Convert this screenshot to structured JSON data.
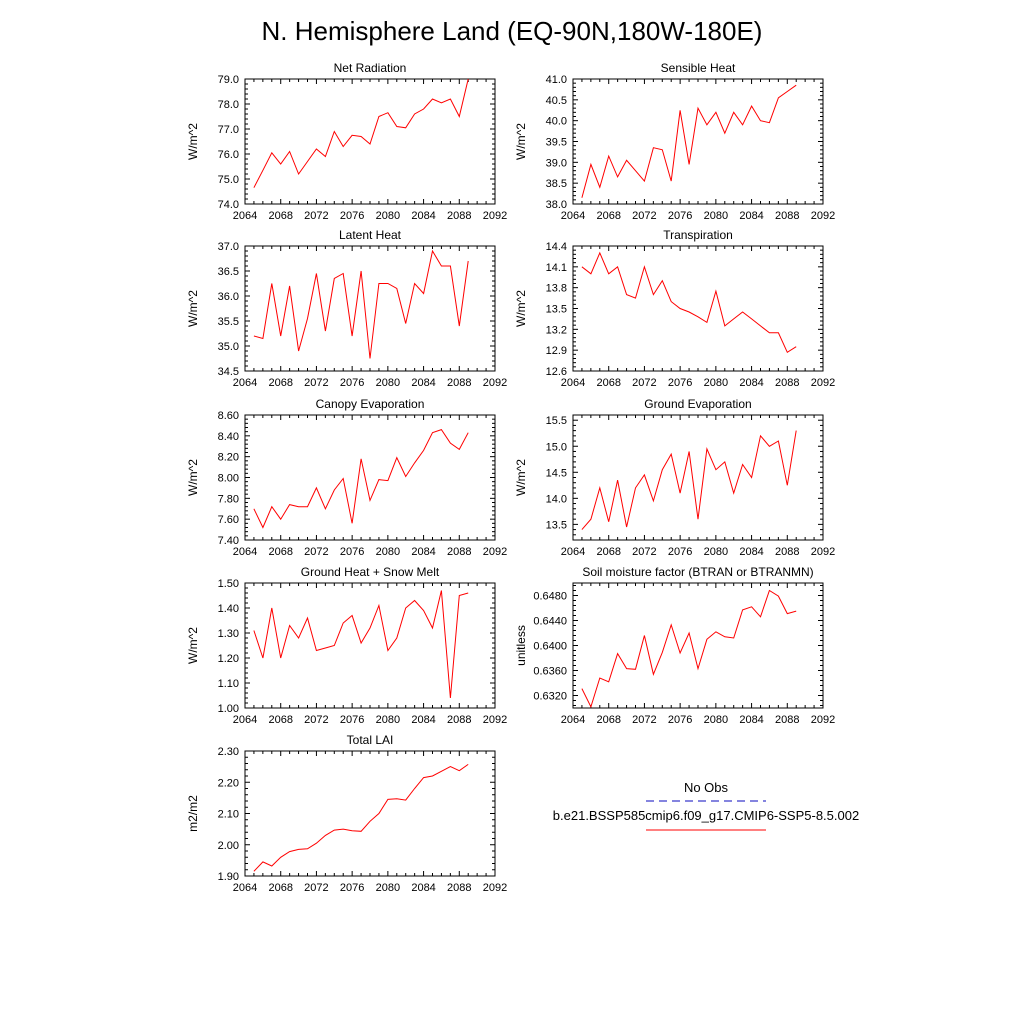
{
  "page": {
    "title": "N. Hemisphere Land (EQ-90N,180W-180E)"
  },
  "legend": {
    "obs_label": "No Obs",
    "obs_color": "#3b3bcc",
    "model_label": "b.e21.BSSP585cmip6.f09_g17.CMIP6-SSP5-8.5.002",
    "model_color": "#ff0000"
  },
  "chart_data": [
    {
      "type": "line",
      "title": "Net Radiation",
      "ylabel": "W/m^2",
      "xlim": [
        2064,
        2092
      ],
      "ylim": [
        74.0,
        79.0
      ],
      "xticks": [
        "2064",
        "2068",
        "2072",
        "2076",
        "2080",
        "2084",
        "2088",
        "2092"
      ],
      "yticks": [
        "74.0",
        "75.0",
        "76.0",
        "77.0",
        "78.0",
        "79.0"
      ],
      "x": [
        2065,
        2066,
        2067,
        2068,
        2069,
        2070,
        2071,
        2072,
        2073,
        2074,
        2075,
        2076,
        2077,
        2078,
        2079,
        2080,
        2081,
        2082,
        2083,
        2084,
        2085,
        2086,
        2087,
        2088,
        2089
      ],
      "series": [
        {
          "color": "#ff0000",
          "values": [
            74.65,
            75.35,
            76.05,
            75.6,
            76.1,
            75.2,
            75.7,
            76.2,
            75.9,
            76.9,
            76.3,
            76.75,
            76.7,
            76.4,
            77.5,
            77.65,
            77.1,
            77.05,
            77.6,
            77.8,
            78.2,
            78.05,
            78.2,
            77.5,
            79.0
          ]
        }
      ]
    },
    {
      "type": "line",
      "title": "Sensible Heat",
      "ylabel": "W/m^2",
      "xlim": [
        2064,
        2092
      ],
      "ylim": [
        38.0,
        41.0
      ],
      "xticks": [
        "2064",
        "2068",
        "2072",
        "2076",
        "2080",
        "2084",
        "2088",
        "2092"
      ],
      "yticks": [
        "38.0",
        "38.5",
        "39.0",
        "39.5",
        "40.0",
        "40.5",
        "41.0"
      ],
      "x": [
        2065,
        2066,
        2067,
        2068,
        2069,
        2070,
        2071,
        2072,
        2073,
        2074,
        2075,
        2076,
        2077,
        2078,
        2079,
        2080,
        2081,
        2082,
        2083,
        2084,
        2085,
        2086,
        2087,
        2088,
        2089
      ],
      "series": [
        {
          "color": "#ff0000",
          "values": [
            38.15,
            38.95,
            38.4,
            39.15,
            38.65,
            39.05,
            38.8,
            38.55,
            39.35,
            39.3,
            38.55,
            40.25,
            38.95,
            40.3,
            39.9,
            40.2,
            39.7,
            40.2,
            39.9,
            40.35,
            40.0,
            39.95,
            40.55,
            40.7,
            40.85
          ]
        }
      ]
    },
    {
      "type": "line",
      "title": "Latent Heat",
      "ylabel": "W/m^2",
      "xlim": [
        2064,
        2092
      ],
      "ylim": [
        34.5,
        37.0
      ],
      "xticks": [
        "2064",
        "2068",
        "2072",
        "2076",
        "2080",
        "2084",
        "2088",
        "2092"
      ],
      "yticks": [
        "34.5",
        "35.0",
        "35.5",
        "36.0",
        "36.5",
        "37.0"
      ],
      "x": [
        2065,
        2066,
        2067,
        2068,
        2069,
        2070,
        2071,
        2072,
        2073,
        2074,
        2075,
        2076,
        2077,
        2078,
        2079,
        2080,
        2081,
        2082,
        2083,
        2084,
        2085,
        2086,
        2087,
        2088,
        2089
      ],
      "series": [
        {
          "color": "#ff0000",
          "values": [
            35.2,
            35.15,
            36.25,
            35.2,
            36.2,
            34.9,
            35.55,
            36.45,
            35.3,
            36.35,
            36.45,
            35.2,
            36.5,
            34.75,
            36.25,
            36.25,
            36.15,
            35.45,
            36.25,
            36.05,
            36.9,
            36.6,
            36.6,
            35.4,
            36.7
          ]
        }
      ]
    },
    {
      "type": "line",
      "title": "Transpiration",
      "ylabel": "W/m^2",
      "xlim": [
        2064,
        2092
      ],
      "ylim": [
        12.6,
        14.4
      ],
      "xticks": [
        "2064",
        "2068",
        "2072",
        "2076",
        "2080",
        "2084",
        "2088",
        "2092"
      ],
      "yticks": [
        "12.6",
        "12.9",
        "13.2",
        "13.5",
        "13.8",
        "14.1",
        "14.4"
      ],
      "x": [
        2065,
        2066,
        2067,
        2068,
        2069,
        2070,
        2071,
        2072,
        2073,
        2074,
        2075,
        2076,
        2077,
        2078,
        2079,
        2080,
        2081,
        2082,
        2083,
        2084,
        2085,
        2086,
        2087,
        2088,
        2089
      ],
      "series": [
        {
          "color": "#ff0000",
          "values": [
            14.1,
            14.0,
            14.3,
            14.0,
            14.1,
            13.7,
            13.65,
            14.1,
            13.7,
            13.9,
            13.6,
            13.5,
            13.45,
            13.38,
            13.3,
            13.75,
            13.25,
            13.35,
            13.45,
            13.35,
            13.25,
            13.15,
            13.15,
            12.87,
            12.95
          ]
        }
      ]
    },
    {
      "type": "line",
      "title": "Canopy Evaporation",
      "ylabel": "W/m^2",
      "xlim": [
        2064,
        2092
      ],
      "ylim": [
        7.4,
        8.6
      ],
      "xticks": [
        "2064",
        "2068",
        "2072",
        "2076",
        "2080",
        "2084",
        "2088",
        "2092"
      ],
      "yticks": [
        "7.40",
        "7.60",
        "7.80",
        "8.00",
        "8.20",
        "8.40",
        "8.60"
      ],
      "x": [
        2065,
        2066,
        2067,
        2068,
        2069,
        2070,
        2071,
        2072,
        2073,
        2074,
        2075,
        2076,
        2077,
        2078,
        2079,
        2080,
        2081,
        2082,
        2083,
        2084,
        2085,
        2086,
        2087,
        2088,
        2089
      ],
      "series": [
        {
          "color": "#ff0000",
          "values": [
            7.7,
            7.52,
            7.72,
            7.6,
            7.74,
            7.72,
            7.72,
            7.9,
            7.7,
            7.88,
            7.99,
            7.56,
            8.18,
            7.78,
            7.98,
            7.97,
            8.19,
            8.01,
            8.14,
            8.26,
            8.43,
            8.46,
            8.33,
            8.27,
            8.43
          ]
        }
      ]
    },
    {
      "type": "line",
      "title": "Ground Evaporation",
      "ylabel": "W/m^2",
      "xlim": [
        2064,
        2092
      ],
      "ylim": [
        13.2,
        15.6
      ],
      "xticks": [
        "2064",
        "2068",
        "2072",
        "2076",
        "2080",
        "2084",
        "2088",
        "2092"
      ],
      "yticks": [
        "13.5",
        "14.0",
        "14.5",
        "15.0",
        "15.5"
      ],
      "x": [
        2065,
        2066,
        2067,
        2068,
        2069,
        2070,
        2071,
        2072,
        2073,
        2074,
        2075,
        2076,
        2077,
        2078,
        2079,
        2080,
        2081,
        2082,
        2083,
        2084,
        2085,
        2086,
        2087,
        2088,
        2089
      ],
      "series": [
        {
          "color": "#ff0000",
          "values": [
            13.4,
            13.6,
            14.2,
            13.55,
            14.35,
            13.45,
            14.2,
            14.45,
            13.95,
            14.55,
            14.85,
            14.1,
            14.9,
            13.6,
            14.95,
            14.55,
            14.7,
            14.1,
            14.65,
            14.4,
            15.2,
            15.0,
            15.1,
            14.25,
            15.3
          ]
        }
      ]
    },
    {
      "type": "line",
      "title": "Ground Heat + Snow Melt",
      "ylabel": "W/m^2",
      "xlim": [
        2064,
        2092
      ],
      "ylim": [
        1.0,
        1.5
      ],
      "xticks": [
        "2064",
        "2068",
        "2072",
        "2076",
        "2080",
        "2084",
        "2088",
        "2092"
      ],
      "yticks": [
        "1.00",
        "1.10",
        "1.20",
        "1.30",
        "1.40",
        "1.50"
      ],
      "x": [
        2065,
        2066,
        2067,
        2068,
        2069,
        2070,
        2071,
        2072,
        2073,
        2074,
        2075,
        2076,
        2077,
        2078,
        2079,
        2080,
        2081,
        2082,
        2083,
        2084,
        2085,
        2086,
        2087,
        2088,
        2089
      ],
      "series": [
        {
          "color": "#ff0000",
          "values": [
            1.31,
            1.2,
            1.4,
            1.2,
            1.33,
            1.28,
            1.36,
            1.23,
            1.24,
            1.25,
            1.34,
            1.37,
            1.26,
            1.32,
            1.41,
            1.23,
            1.28,
            1.4,
            1.43,
            1.39,
            1.32,
            1.47,
            1.04,
            1.45,
            1.46
          ]
        }
      ]
    },
    {
      "type": "line",
      "title": "Soil moisture factor (BTRAN or BTRANMN)",
      "ylabel": "unitless",
      "xlim": [
        2064,
        2092
      ],
      "ylim": [
        0.63,
        0.65
      ],
      "xticks": [
        "2064",
        "2068",
        "2072",
        "2076",
        "2080",
        "2084",
        "2088",
        "2092"
      ],
      "yticks": [
        "0.6320",
        "0.6360",
        "0.6400",
        "0.6440",
        "0.6480"
      ],
      "x": [
        2065,
        2066,
        2067,
        2068,
        2069,
        2070,
        2071,
        2072,
        2073,
        2074,
        2075,
        2076,
        2077,
        2078,
        2079,
        2080,
        2081,
        2082,
        2083,
        2084,
        2085,
        2086,
        2087,
        2088,
        2089
      ],
      "series": [
        {
          "color": "#ff0000",
          "values": [
            0.6331,
            0.6302,
            0.6348,
            0.6342,
            0.6387,
            0.6363,
            0.6362,
            0.6416,
            0.6354,
            0.6389,
            0.6433,
            0.6388,
            0.642,
            0.6363,
            0.641,
            0.6422,
            0.6414,
            0.6412,
            0.6457,
            0.6462,
            0.6446,
            0.6488,
            0.6479,
            0.6451,
            0.6455
          ]
        }
      ]
    },
    {
      "type": "line",
      "title": "Total LAI",
      "ylabel": "m2/m2",
      "xlim": [
        2064,
        2092
      ],
      "ylim": [
        1.9,
        2.3
      ],
      "xticks": [
        "2064",
        "2068",
        "2072",
        "2076",
        "2080",
        "2084",
        "2088",
        "2092"
      ],
      "yticks": [
        "1.90",
        "2.00",
        "2.10",
        "2.20",
        "2.30"
      ],
      "x": [
        2065,
        2066,
        2067,
        2068,
        2069,
        2070,
        2071,
        2072,
        2073,
        2074,
        2075,
        2076,
        2077,
        2078,
        2079,
        2080,
        2081,
        2082,
        2083,
        2084,
        2085,
        2086,
        2087,
        2088,
        2089
      ],
      "series": [
        {
          "color": "#ff0000",
          "values": [
            1.915,
            1.945,
            1.932,
            1.96,
            1.978,
            1.985,
            1.987,
            2.005,
            2.03,
            2.047,
            2.05,
            2.045,
            2.043,
            2.075,
            2.1,
            2.145,
            2.147,
            2.143,
            2.18,
            2.215,
            2.22,
            2.235,
            2.25,
            2.237,
            2.257
          ]
        }
      ]
    }
  ]
}
